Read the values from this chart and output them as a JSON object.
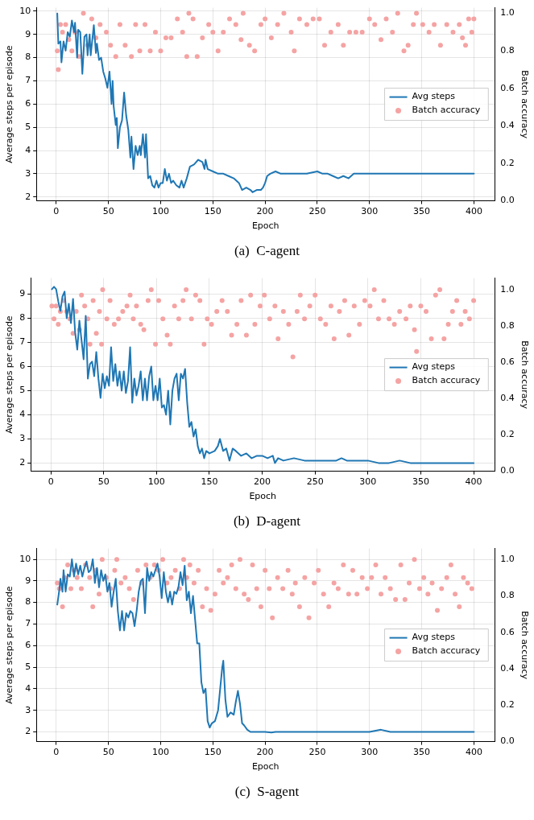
{
  "chart_data": [
    {
      "type": "line",
      "xlabel": "Epoch",
      "ylabel": "Average steps per episode",
      "y2label": "Batch accuracy",
      "annotations": [
        "(a)  C-agent"
      ],
      "xlim": [
        -19,
        420
      ],
      "xticks": [
        0,
        50,
        100,
        150,
        200,
        250,
        300,
        350,
        400
      ],
      "ylim": [
        1.83,
        10.15
      ],
      "yticks": [
        2,
        3,
        4,
        5,
        6,
        7,
        8,
        9,
        10
      ],
      "y2lim": [
        0,
        1.03
      ],
      "y2ticks": [
        {
          "value": 0,
          "label": "0.0"
        },
        {
          "value": 0.2,
          "label": "0.2"
        },
        {
          "value": 0.4,
          "label": "0.4"
        },
        {
          "value": 0.6,
          "label": "0.6"
        },
        {
          "value": 0.8,
          "label": "0.8"
        },
        {
          "value": 1,
          "label": "1.0"
        }
      ],
      "grid": true,
      "legend": "right",
      "series": [
        {
          "name": "Avg steps",
          "type": "line",
          "color": "#1f77b4",
          "x": [
            1,
            2,
            4,
            5,
            7,
            9,
            11,
            13,
            15,
            17,
            18,
            20,
            21,
            23,
            25,
            27,
            29,
            30,
            32,
            33,
            36,
            38,
            39,
            41,
            43,
            45,
            47,
            49,
            51,
            53,
            54,
            55,
            57,
            58,
            59,
            61,
            63,
            65,
            67,
            69,
            71,
            72,
            74,
            76,
            78,
            80,
            81,
            83,
            85,
            86,
            88,
            90,
            92,
            94,
            96,
            98,
            100,
            102,
            104,
            106,
            108,
            110,
            112,
            115,
            118,
            120,
            122,
            125,
            128,
            132,
            136,
            140,
            142,
            143,
            145,
            150,
            155,
            160,
            165,
            170,
            175,
            178,
            182,
            186,
            188,
            192,
            196,
            198,
            200,
            202,
            205,
            210,
            215,
            220,
            230,
            240,
            250,
            255,
            260,
            265,
            270,
            275,
            280,
            285,
            290,
            300,
            320,
            330,
            340,
            360,
            380,
            400
          ],
          "values": [
            9.9,
            8.6,
            8.7,
            7.8,
            8.7,
            8.3,
            9.1,
            8.9,
            9.6,
            9.1,
            9.5,
            8.0,
            9.2,
            9.1,
            7.3,
            8.9,
            9.0,
            8.1,
            9.0,
            8.1,
            9.4,
            8.2,
            8.6,
            7.9,
            8.0,
            7.4,
            7.1,
            6.7,
            7.4,
            6.0,
            7.0,
            5.9,
            5.1,
            5.4,
            4.1,
            5.0,
            5.3,
            6.5,
            5.5,
            4.9,
            3.7,
            4.6,
            3.2,
            4.2,
            3.8,
            4.2,
            3.8,
            4.7,
            3.7,
            4.7,
            2.8,
            2.9,
            2.5,
            2.4,
            2.7,
            2.4,
            2.6,
            2.6,
            3.2,
            2.7,
            3.0,
            2.6,
            2.7,
            2.5,
            2.4,
            2.7,
            2.4,
            2.8,
            3.3,
            3.4,
            3.6,
            3.5,
            3.2,
            3.6,
            3.2,
            3.1,
            3.0,
            3.0,
            2.9,
            2.8,
            2.6,
            2.3,
            2.4,
            2.3,
            2.2,
            2.3,
            2.3,
            2.4,
            2.6,
            2.9,
            3.0,
            3.1,
            3.0,
            3.0,
            3.0,
            3.0,
            3.1,
            3.0,
            3.0,
            2.9,
            2.8,
            2.9,
            2.8,
            3.0,
            3.0,
            3.0,
            3.0,
            3.0,
            3.0,
            3.0,
            3.0,
            3.0
          ]
        },
        {
          "name": "Batch accuracy",
          "type": "scatter",
          "axis": "y2",
          "color": "#f5a3a3",
          "x": [
            1,
            2,
            4,
            6,
            9,
            12,
            15,
            18,
            22,
            26,
            30,
            34,
            38,
            42,
            48,
            52,
            57,
            61,
            66,
            72,
            76,
            80,
            85,
            90,
            95,
            100,
            105,
            110,
            116,
            121,
            125,
            127,
            131,
            135,
            140,
            146,
            150,
            155,
            160,
            166,
            172,
            177,
            179,
            185,
            190,
            196,
            200,
            206,
            212,
            218,
            225,
            228,
            233,
            240,
            246,
            252,
            257,
            263,
            270,
            275,
            281,
            287,
            293,
            300,
            305,
            311,
            316,
            322,
            327,
            333,
            337,
            342,
            345,
            351,
            357,
            362,
            368,
            374,
            380,
            386,
            389,
            392,
            395,
            398,
            400
          ],
          "values": [
            0.8,
            0.7,
            0.94,
            0.9,
            0.94,
            0.86,
            0.8,
            0.9,
            0.77,
            1.0,
            0.83,
            0.97,
            0.87,
            0.94,
            0.9,
            0.83,
            0.77,
            0.94,
            0.83,
            0.77,
            0.94,
            0.8,
            0.94,
            0.8,
            0.9,
            0.8,
            0.87,
            0.87,
            0.97,
            0.9,
            0.77,
            1.0,
            0.97,
            0.77,
            0.87,
            0.94,
            0.9,
            0.8,
            0.9,
            0.97,
            0.94,
            0.86,
            1.0,
            0.83,
            0.8,
            0.94,
            0.97,
            0.87,
            0.94,
            1.0,
            0.9,
            0.8,
            0.97,
            0.94,
            0.97,
            0.97,
            0.83,
            0.9,
            0.94,
            0.83,
            0.9,
            0.9,
            0.9,
            0.97,
            0.94,
            0.86,
            0.97,
            0.9,
            1.0,
            0.8,
            0.83,
            0.94,
            1.0,
            0.94,
            0.9,
            0.94,
            0.83,
            0.94,
            0.9,
            0.94,
            0.87,
            0.83,
            0.97,
            0.9,
            0.97
          ]
        }
      ]
    },
    {
      "type": "line",
      "xlabel": "Epoch",
      "ylabel": "Average steps per episode",
      "y2label": "Batch accuracy",
      "annotations": [
        "(b)  D-agent"
      ],
      "xlim": [
        -19,
        420
      ],
      "xticks": [
        0,
        50,
        100,
        150,
        200,
        250,
        300,
        350,
        400
      ],
      "ylim": [
        1.66,
        9.66
      ],
      "yticks": [
        2,
        3,
        4,
        5,
        6,
        7,
        8,
        9
      ],
      "y2lim": [
        0,
        1.064
      ],
      "y2ticks": [
        {
          "value": 0,
          "label": "0.0"
        },
        {
          "value": 0.2,
          "label": "0.2"
        },
        {
          "value": 0.4,
          "label": "0.4"
        },
        {
          "value": 0.6,
          "label": "0.6"
        },
        {
          "value": 0.8,
          "label": "0.8"
        },
        {
          "value": 1,
          "label": "1.0"
        }
      ],
      "grid": true,
      "legend": "right",
      "series": [
        {
          "name": "Avg steps",
          "type": "line",
          "color": "#1f77b4",
          "x": [
            1,
            3,
            5,
            7,
            9,
            11,
            13,
            15,
            17,
            19,
            21,
            23,
            25,
            27,
            29,
            31,
            33,
            35,
            37,
            39,
            41,
            43,
            45,
            47,
            49,
            51,
            53,
            55,
            57,
            59,
            61,
            63,
            65,
            67,
            69,
            71,
            73,
            75,
            77,
            79,
            81,
            83,
            85,
            87,
            89,
            91,
            93,
            95,
            97,
            99,
            101,
            103,
            105,
            107,
            109,
            111,
            113,
            115,
            117,
            119,
            121,
            123,
            125,
            127,
            129,
            131,
            133,
            135,
            137,
            139,
            141,
            143,
            145,
            147,
            150,
            155,
            158,
            160,
            163,
            166,
            169,
            172,
            175,
            180,
            185,
            190,
            195,
            200,
            205,
            210,
            212,
            215,
            220,
            230,
            240,
            250,
            260,
            270,
            275,
            280,
            290,
            300,
            310,
            320,
            330,
            340,
            360,
            380,
            400
          ],
          "values": [
            9.2,
            9.3,
            9.2,
            8.7,
            8.3,
            8.9,
            9.1,
            8.0,
            8.6,
            7.8,
            8.8,
            7.4,
            6.7,
            7.9,
            7.1,
            6.3,
            8.1,
            5.5,
            6.1,
            6.2,
            5.6,
            6.6,
            5.5,
            4.7,
            5.7,
            5.1,
            5.6,
            5.2,
            6.8,
            5.4,
            6.1,
            5.2,
            5.8,
            5.0,
            5.8,
            4.9,
            5.4,
            6.8,
            4.5,
            5.5,
            4.8,
            5.2,
            5.8,
            4.6,
            5.5,
            4.6,
            5.6,
            6.0,
            4.6,
            5.2,
            4.6,
            5.5,
            4.3,
            4.4,
            4.0,
            5.0,
            3.6,
            5.0,
            5.5,
            5.7,
            4.6,
            5.7,
            5.5,
            5.9,
            4.5,
            3.5,
            3.7,
            3.1,
            3.4,
            2.7,
            2.4,
            2.6,
            2.2,
            2.5,
            2.4,
            2.5,
            2.7,
            3.0,
            2.5,
            2.6,
            2.1,
            2.6,
            2.5,
            2.3,
            2.4,
            2.2,
            2.3,
            2.3,
            2.2,
            2.3,
            2.0,
            2.2,
            2.1,
            2.2,
            2.1,
            2.1,
            2.1,
            2.1,
            2.2,
            2.1,
            2.1,
            2.1,
            2.0,
            2.0,
            2.1,
            2.0,
            2.0,
            2.0,
            2.0
          ]
        },
        {
          "name": "Batch accuracy",
          "type": "scatter",
          "axis": "y2",
          "color": "#f5a3a3",
          "x": [
            1,
            3,
            5,
            7,
            9,
            12,
            15,
            18,
            21,
            24,
            27,
            29,
            32,
            35,
            37,
            40,
            43,
            46,
            48,
            49,
            53,
            56,
            60,
            64,
            68,
            72,
            75,
            78,
            81,
            85,
            88,
            92,
            95,
            99,
            102,
            106,
            110,
            113,
            117,
            121,
            125,
            128,
            133,
            137,
            141,
            145,
            148,
            152,
            157,
            162,
            167,
            171,
            176,
            180,
            185,
            189,
            193,
            198,
            202,
            207,
            212,
            215,
            220,
            225,
            229,
            233,
            236,
            240,
            245,
            250,
            255,
            260,
            265,
            268,
            273,
            278,
            282,
            287,
            292,
            297,
            302,
            306,
            310,
            315,
            320,
            325,
            330,
            336,
            340,
            344,
            346,
            350,
            355,
            360,
            364,
            368,
            372,
            376,
            380,
            384,
            388,
            392,
            396,
            400
          ],
          "values": [
            0.91,
            0.84,
            0.91,
            0.81,
            0.88,
            0.94,
            0.88,
            0.84,
            0.76,
            0.88,
            0.78,
            0.97,
            0.91,
            0.84,
            0.7,
            0.94,
            0.76,
            0.88,
            0.7,
            1.0,
            0.84,
            0.94,
            0.81,
            0.84,
            0.88,
            0.91,
            0.97,
            0.84,
            0.91,
            0.81,
            0.78,
            0.94,
            1.0,
            0.7,
            0.94,
            0.84,
            0.75,
            0.7,
            0.91,
            0.84,
            0.94,
            1.0,
            0.84,
            0.97,
            0.94,
            0.7,
            0.84,
            0.81,
            0.88,
            0.94,
            0.88,
            0.75,
            0.81,
            0.94,
            0.75,
            0.97,
            0.81,
            0.91,
            0.97,
            0.84,
            0.91,
            0.73,
            0.88,
            0.81,
            0.63,
            0.88,
            0.97,
            0.84,
            0.91,
            0.97,
            0.84,
            0.81,
            0.91,
            0.73,
            0.88,
            0.94,
            0.75,
            0.91,
            0.81,
            0.94,
            0.91,
            1.0,
            0.84,
            0.94,
            0.84,
            0.81,
            0.88,
            0.84,
            0.91,
            0.78,
            0.66,
            0.91,
            0.88,
            0.73,
            0.97,
            1.0,
            0.73,
            0.81,
            0.88,
            0.94,
            0.81,
            0.88,
            0.84,
            0.94
          ]
        }
      ]
    },
    {
      "type": "line",
      "xlabel": "Epoch",
      "ylabel": "Average steps per episode",
      "y2label": "Batch accuracy",
      "annotations": [
        "(c)  S-agent"
      ],
      "xlim": [
        -19,
        420
      ],
      "xticks": [
        0,
        50,
        100,
        150,
        200,
        250,
        300,
        350,
        400
      ],
      "ylim": [
        1.55,
        10.5
      ],
      "yticks": [
        2,
        3,
        4,
        5,
        6,
        7,
        8,
        9,
        10
      ],
      "y2lim": [
        0,
        1.06
      ],
      "y2ticks": [
        {
          "value": 0,
          "label": "0.0"
        },
        {
          "value": 0.2,
          "label": "0.2"
        },
        {
          "value": 0.4,
          "label": "0.4"
        },
        {
          "value": 0.6,
          "label": "0.6"
        },
        {
          "value": 0.8,
          "label": "0.8"
        },
        {
          "value": 1,
          "label": "1.0"
        }
      ],
      "grid": true,
      "legend": "right",
      "series": [
        {
          "name": "Avg steps",
          "type": "line",
          "color": "#1f77b4",
          "x": [
            1,
            3,
            4,
            6,
            7,
            9,
            11,
            13,
            15,
            17,
            19,
            21,
            23,
            25,
            27,
            29,
            31,
            33,
            35,
            37,
            39,
            41,
            43,
            45,
            47,
            49,
            51,
            53,
            55,
            57,
            59,
            61,
            63,
            65,
            67,
            69,
            71,
            73,
            75,
            77,
            79,
            81,
            83,
            85,
            87,
            89,
            91,
            93,
            95,
            97,
            99,
            101,
            103,
            105,
            107,
            109,
            111,
            113,
            115,
            117,
            119,
            121,
            123,
            125,
            127,
            129,
            131,
            133,
            135,
            137,
            139,
            141,
            143,
            145,
            147,
            149,
            152,
            155,
            157,
            159,
            160,
            162,
            164,
            167,
            170,
            172,
            174,
            176,
            178,
            180,
            183,
            186,
            190,
            200,
            206,
            210,
            230,
            240,
            260,
            280,
            300,
            311,
            320,
            340,
            360,
            400
          ],
          "values": [
            7.9,
            8.6,
            9.1,
            8.5,
            9.5,
            8.5,
            9.3,
            9.2,
            10.0,
            9.2,
            9.8,
            9.3,
            9.7,
            9.2,
            9.6,
            9.9,
            9.4,
            9.5,
            10.0,
            8.9,
            9.6,
            8.7,
            9.5,
            9.0,
            9.3,
            8.5,
            8.9,
            7.8,
            8.5,
            9.1,
            7.6,
            6.7,
            7.6,
            6.7,
            7.5,
            7.3,
            7.6,
            7.5,
            6.9,
            7.6,
            8.5,
            9.0,
            9.1,
            7.5,
            9.6,
            9.0,
            9.4,
            9.2,
            9.5,
            9.8,
            9.2,
            8.2,
            9.4,
            8.5,
            8.0,
            8.5,
            7.9,
            8.5,
            8.4,
            8.7,
            9.4,
            8.8,
            9.7,
            8.1,
            8.5,
            7.5,
            8.3,
            7.2,
            6.1,
            6.1,
            4.3,
            3.8,
            4.0,
            2.5,
            2.2,
            2.4,
            2.5,
            3.0,
            4.0,
            5.0,
            5.3,
            3.5,
            2.7,
            2.9,
            2.8,
            3.4,
            3.9,
            3.3,
            2.4,
            2.3,
            2.1,
            2.0,
            2.0,
            2.0,
            1.97,
            2.0,
            2.0,
            2.0,
            2.0,
            2.0,
            2.0,
            2.1,
            2.0,
            2.0,
            2.0,
            2.0
          ]
        },
        {
          "name": "Batch accuracy",
          "type": "scatter",
          "axis": "y2",
          "color": "#f5a3a3",
          "x": [
            1,
            3,
            6,
            8,
            11,
            14,
            17,
            20,
            24,
            28,
            32,
            35,
            38,
            41,
            44,
            48,
            52,
            56,
            58,
            62,
            66,
            70,
            74,
            78,
            82,
            86,
            90,
            94,
            98,
            102,
            106,
            110,
            114,
            118,
            122,
            125,
            128,
            132,
            136,
            140,
            144,
            148,
            152,
            156,
            160,
            164,
            168,
            172,
            176,
            180,
            184,
            188,
            192,
            196,
            200,
            204,
            207,
            212,
            217,
            222,
            226,
            229,
            233,
            238,
            242,
            247,
            251,
            256,
            261,
            266,
            270,
            275,
            280,
            284,
            288,
            293,
            298,
            302,
            306,
            311,
            315,
            320,
            325,
            330,
            334,
            338,
            343,
            348,
            352,
            356,
            360,
            365,
            369,
            374,
            378,
            382,
            386,
            390,
            394,
            398
          ],
          "values": [
            0.87,
            0.84,
            0.74,
            0.9,
            0.97,
            0.84,
            0.94,
            0.9,
            0.84,
            0.97,
            0.9,
            0.74,
            0.94,
            0.81,
            1.0,
            0.9,
            0.84,
            0.94,
            1.0,
            0.87,
            0.9,
            0.84,
            0.78,
            0.94,
            0.87,
            0.97,
            0.9,
            0.97,
            0.94,
            1.0,
            0.87,
            0.9,
            0.94,
            0.84,
            1.0,
            0.9,
            0.97,
            0.87,
            0.94,
            0.74,
            0.84,
            0.72,
            0.81,
            0.94,
            0.87,
            0.9,
            0.97,
            0.84,
            1.0,
            0.81,
            0.78,
            0.97,
            0.84,
            0.74,
            0.94,
            0.84,
            0.68,
            0.9,
            0.84,
            0.94,
            0.81,
            0.87,
            0.74,
            0.9,
            0.68,
            0.87,
            0.94,
            0.81,
            0.74,
            0.87,
            0.84,
            0.97,
            0.81,
            0.94,
            0.81,
            0.9,
            0.84,
            0.9,
            0.97,
            0.81,
            0.9,
            0.84,
            0.78,
            0.97,
            0.78,
            0.87,
            1.0,
            0.84,
            0.9,
            0.81,
            0.87,
            0.72,
            0.84,
            0.9,
            0.97,
            0.81,
            0.74,
            0.9,
            0.87,
            0.84
          ]
        }
      ]
    }
  ]
}
